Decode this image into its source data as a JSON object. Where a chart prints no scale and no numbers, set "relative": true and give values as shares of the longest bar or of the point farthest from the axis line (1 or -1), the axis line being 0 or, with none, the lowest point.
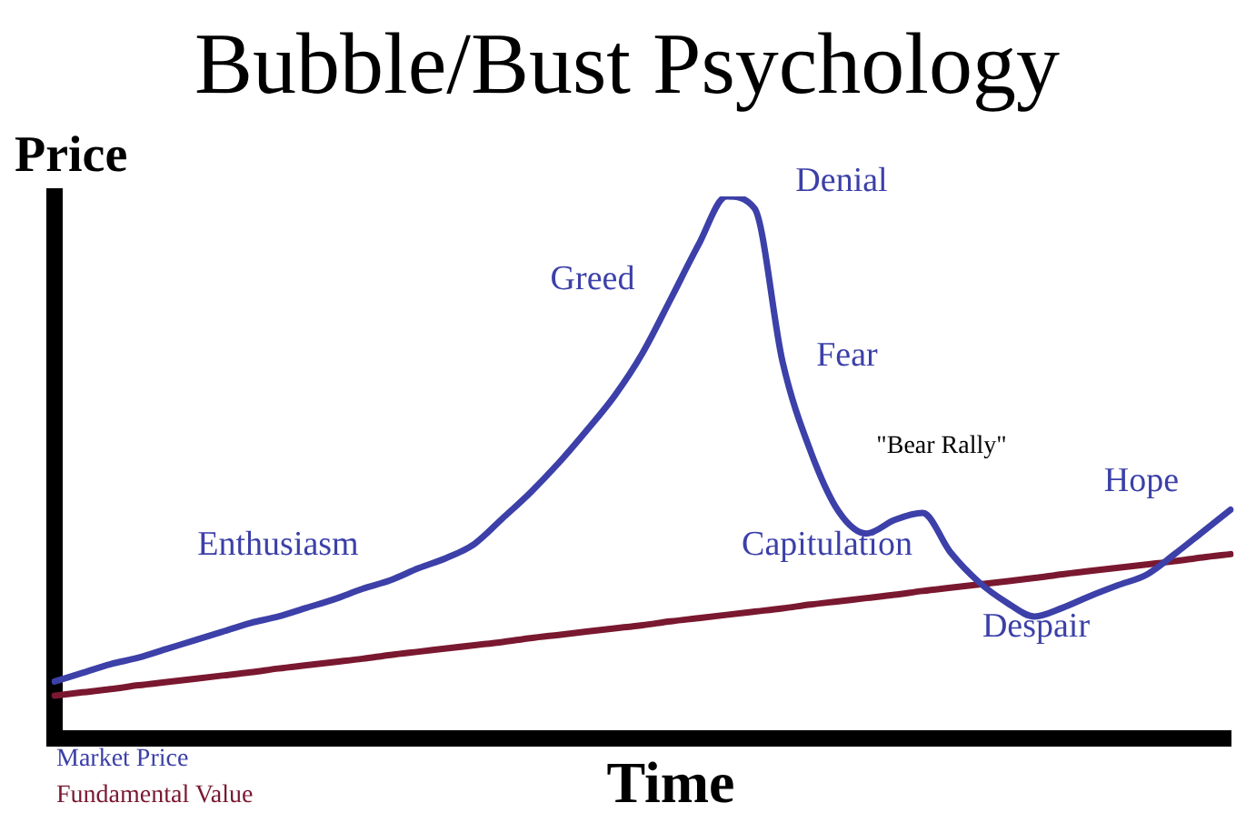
{
  "chart_data": {
    "type": "line",
    "title": "Bubble/Bust Psychology",
    "xlabel": "Time",
    "ylabel": "Price",
    "relative": true,
    "legend": "bottom left",
    "grid": false,
    "marker": "none",
    "line_style": "solid",
    "categories": [
      null,
      null,
      null,
      null,
      null,
      null,
      null,
      null,
      null,
      null,
      null,
      null,
      null,
      null,
      null,
      null,
      null,
      null,
      null,
      null,
      null,
      null,
      null,
      null,
      null,
      null,
      null,
      null,
      null,
      null,
      null,
      null,
      null,
      null,
      null,
      null,
      null,
      null,
      null,
      null,
      null,
      null,
      null
    ],
    "series": [
      {
        "name": "Market Price",
        "color": "#3c40a8",
        "values": [
          0.105,
          0.121,
          0.137,
          0.149,
          0.165,
          0.181,
          0.197,
          0.213,
          0.225,
          0.241,
          0.257,
          0.276,
          0.292,
          0.314,
          0.333,
          0.359,
          0.406,
          0.454,
          0.508,
          0.568,
          0.632,
          0.711,
          0.81,
          0.911,
          1.0,
          0.978,
          0.695,
          0.53,
          0.419,
          0.378,
          0.403,
          0.416,
          0.343,
          0.289,
          0.251,
          0.225,
          0.241,
          0.263,
          0.283,
          0.302,
          0.34,
          0.381,
          0.422
        ]
      },
      {
        "name": "Fundamental Value",
        "color": "#7a1830",
        "values": [
          0.079,
          0.085,
          0.091,
          0.098,
          0.104,
          0.11,
          0.116,
          0.122,
          0.129,
          0.135,
          0.141,
          0.147,
          0.154,
          0.16,
          0.166,
          0.172,
          0.178,
          0.185,
          0.191,
          0.197,
          0.203,
          0.209,
          0.216,
          0.222,
          0.228,
          0.234,
          0.24,
          0.247,
          0.253,
          0.259,
          0.265,
          0.272,
          0.278,
          0.284,
          0.29,
          0.296,
          0.303,
          0.309,
          0.315,
          0.321,
          0.327,
          0.334,
          0.34
        ]
      }
    ],
    "annotations": [
      "Enthusiasm",
      "Greed",
      "Denial",
      "Fear",
      "\"Bear Rally\"",
      "Capitulation",
      "Despair",
      "Hope"
    ]
  }
}
